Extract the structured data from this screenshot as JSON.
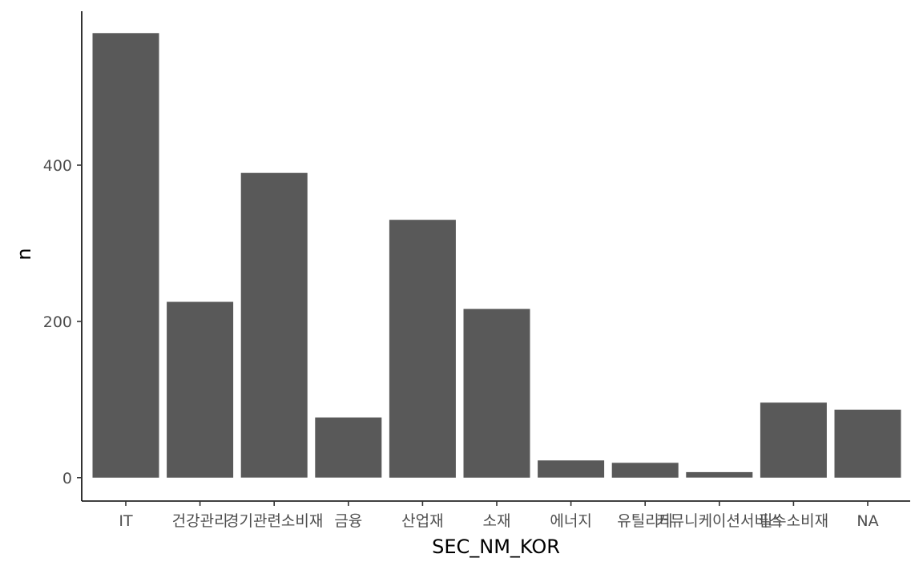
{
  "chart_data": {
    "type": "bar",
    "categories": [
      "IT",
      "건강관리",
      "경기관련소비재",
      "금융",
      "산업재",
      "소재",
      "에너지",
      "유틸리티",
      "커뮤니케이션서비스",
      "필수소비재",
      "NA"
    ],
    "values": [
      569,
      225,
      390,
      77,
      330,
      216,
      22,
      19,
      7,
      96,
      87
    ],
    "title": "",
    "xlabel": "SEC_NM_KOR",
    "ylabel": "n",
    "ylim": [
      -30,
      597
    ],
    "yticks": [
      0,
      200,
      400
    ],
    "grid": false,
    "legend": "none",
    "colors": {
      "bar": "#595959",
      "axis": "#000000",
      "tick_text": "#4d4d4d"
    }
  }
}
